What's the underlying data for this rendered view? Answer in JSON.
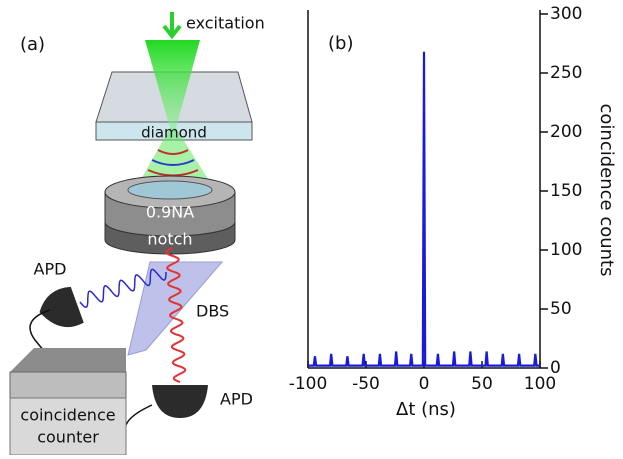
{
  "diagram": {
    "panel_label": "(a)",
    "labels": {
      "excitation": "excitation",
      "diamond": "diamond",
      "na": "0.9NA",
      "notch": "notch",
      "apd1": "APD",
      "dbs": "DBS",
      "apd2": "APD",
      "counter1": "coincidence",
      "counter2": "counter"
    }
  },
  "chart_data": {
    "type": "line",
    "panel_label": "(b)",
    "x_label": "Δt (ns)",
    "y_label": "coincidence  counts",
    "xlim": [
      -100,
      100
    ],
    "xticks": [
      -100,
      -50,
      0,
      50,
      100
    ],
    "ylim": [
      0,
      300
    ],
    "yticks": [
      0,
      50,
      100,
      150,
      200,
      250,
      300
    ],
    "series": [
      {
        "name": "coincidences",
        "color": "#1a1adb",
        "x": [
          -100,
          -95,
          -94,
          -93,
          -81,
          -80,
          -79,
          -67,
          -66,
          -65,
          -53,
          -52,
          -51,
          -39,
          -38,
          -37,
          -25,
          -24,
          -23,
          -12,
          -11,
          -10,
          -1,
          0,
          1,
          11,
          12,
          13,
          25,
          26,
          27,
          39,
          40,
          41,
          53,
          54,
          55,
          67,
          68,
          69,
          81,
          82,
          83,
          95,
          96,
          97,
          100
        ],
        "values": [
          2,
          2,
          10,
          2,
          2,
          12,
          2,
          2,
          10,
          2,
          2,
          12,
          2,
          2,
          12,
          2,
          2,
          14,
          2,
          2,
          12,
          2,
          2,
          268,
          2,
          2,
          12,
          2,
          2,
          14,
          2,
          2,
          14,
          2,
          2,
          14,
          2,
          2,
          12,
          2,
          2,
          12,
          2,
          2,
          12,
          2,
          2
        ]
      }
    ]
  }
}
